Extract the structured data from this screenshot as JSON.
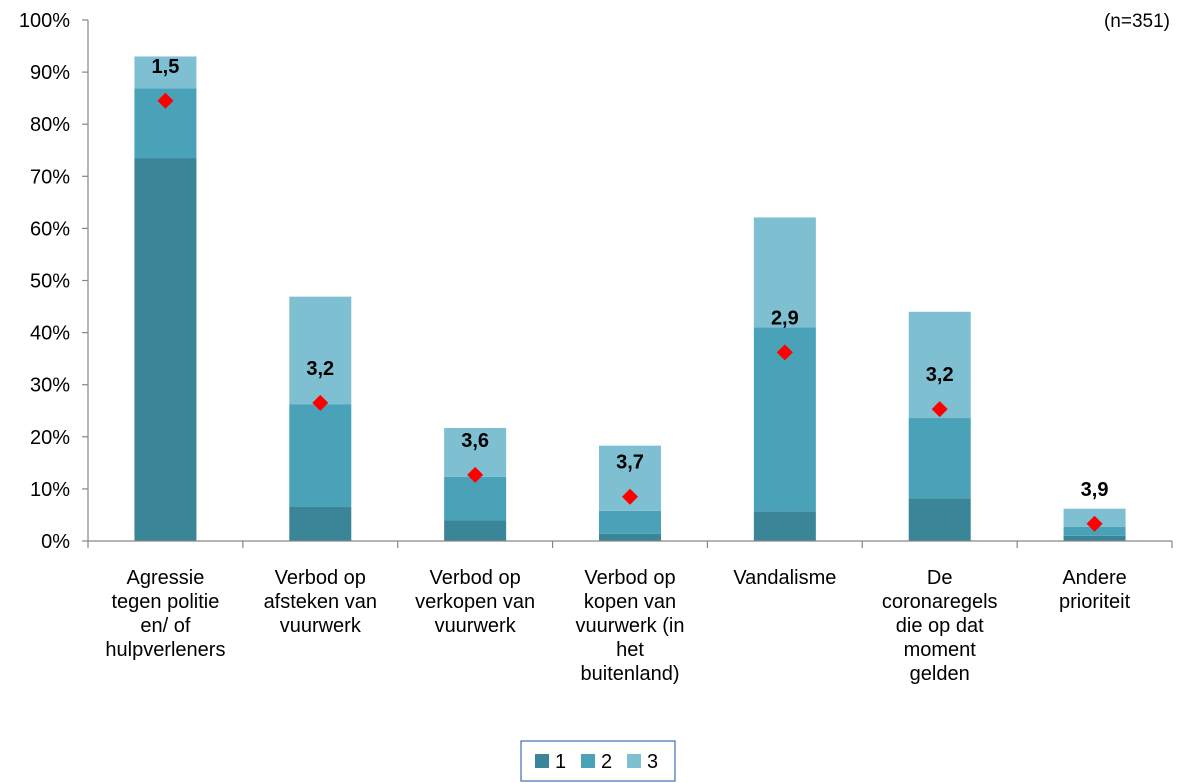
{
  "chart_data": {
    "type": "bar",
    "stacked": true,
    "note": "(n=351)",
    "categories": [
      [
        "Agressie",
        "tegen politie",
        "en/ of",
        "hulpverleners"
      ],
      [
        "Verbod op",
        "afsteken van",
        "vuurwerk"
      ],
      [
        "Verbod op",
        "verkopen van",
        "vuurwerk"
      ],
      [
        "Verbod op",
        "kopen van",
        "vuurwerk (in",
        "het",
        "buitenland)"
      ],
      [
        "Vandalisme"
      ],
      [
        "De",
        "coronaregels",
        "die op dat",
        "moment",
        "gelden"
      ],
      [
        "Andere",
        "prioriteit"
      ]
    ],
    "series": [
      {
        "name": "1",
        "color": "#3a8598",
        "values": [
          73.5,
          6.6,
          4.0,
          1.4,
          5.7,
          8.2,
          1.0
        ]
      },
      {
        "name": "2",
        "color": "#4aa2b8",
        "values": [
          13.4,
          19.6,
          8.3,
          4.4,
          35.3,
          15.4,
          1.7
        ]
      },
      {
        "name": "3",
        "color": "#7fbfd2",
        "values": [
          6.1,
          20.7,
          9.4,
          12.5,
          21.1,
          20.4,
          3.5
        ]
      }
    ],
    "markers": {
      "color": "#ff0000",
      "values": [
        84.5,
        26.5,
        12.7,
        8.5,
        36.2,
        25.3,
        3.3
      ],
      "labels": [
        "1,5",
        "3,2",
        "3,6",
        "3,7",
        "2,9",
        "3,2",
        "3,9"
      ]
    },
    "ylim": [
      0,
      100
    ],
    "yticks": [
      "0%",
      "10%",
      "20%",
      "30%",
      "40%",
      "50%",
      "60%",
      "70%",
      "80%",
      "90%",
      "100%"
    ],
    "legend_position": "bottom",
    "grid": false
  }
}
